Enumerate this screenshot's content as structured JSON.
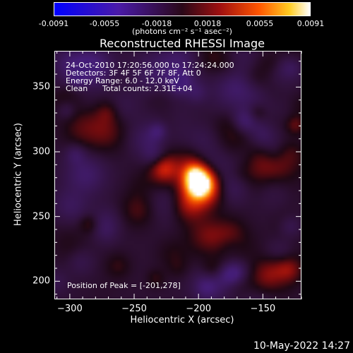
{
  "chart_data": {
    "type": "heatmap",
    "title": "Reconstructed RHESSI Image",
    "xlabel": "Heliocentric X (arcsec)",
    "ylabel": "Heliocentric Y (arcsec)",
    "xlim": [
      -312,
      -120
    ],
    "ylim": [
      186,
      378
    ],
    "xticks": [
      -300,
      -250,
      -200,
      -150
    ],
    "yticks": [
      200,
      250,
      300,
      350
    ],
    "colorbar": {
      "ticks": [
        -0.0091,
        -0.0055,
        -0.0018,
        0.0018,
        0.0055,
        0.0091
      ],
      "tick_labels": [
        "-0.0091",
        "-0.0055",
        "-0.0018",
        "0.0018",
        "0.0055",
        "0.0091"
      ],
      "range": [
        -0.0091,
        0.0091
      ],
      "unit_label": "(photons cm⁻² s⁻¹ asec⁻²)"
    },
    "annotations": {
      "time_range": "24-Oct-2010 17:20:56.000 to 17:24:24.000",
      "detectors": "Detectors: 3F 4F 5F 6F 7F 8F, Att 0",
      "energy_range": "Energy Range: 6.0 - 12.0 keV",
      "algorithm": "Clean",
      "total_counts": "Total counts: 2.31E+04",
      "peak_position": "Position of Peak = [-201,278]"
    },
    "peak": {
      "x": -201,
      "y": 278
    }
  },
  "timestamp": "10-May-2022 14:27"
}
